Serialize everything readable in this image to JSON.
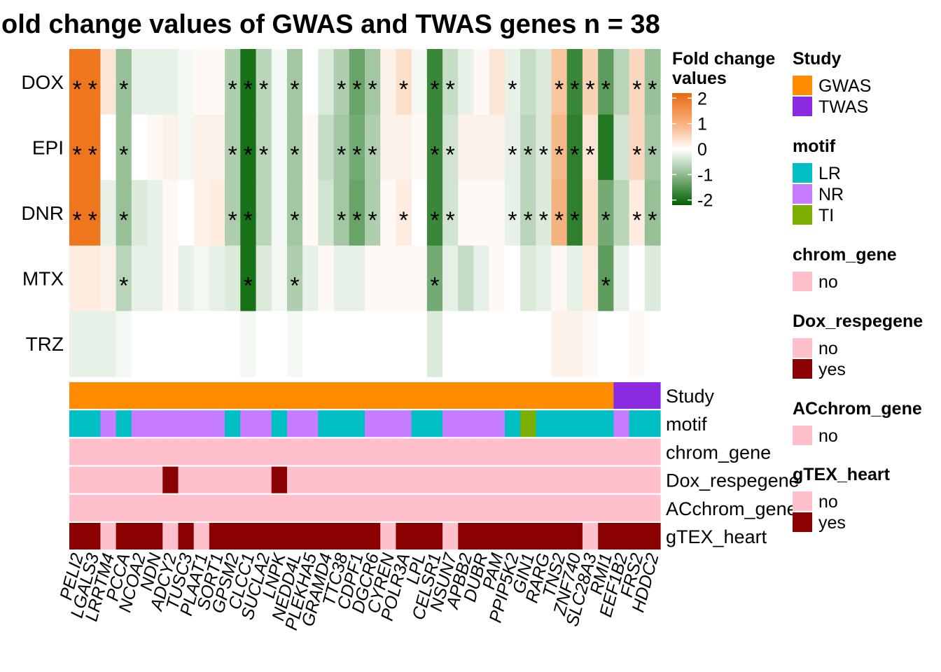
{
  "chart_data": {
    "type": "heatmap",
    "title": "old change values of GWAS and TWAS genes n = 38",
    "rows": [
      "DOX",
      "EPI",
      "DNR",
      "MTX",
      "TRZ"
    ],
    "columns": [
      "PELI2",
      "LGALS3",
      "LRRTM4",
      "PCCA",
      "NCOA2",
      "NDN",
      "ADCY2",
      "TUSC3",
      "PLAAT1",
      "SORT1",
      "GPSM2",
      "CLCC1",
      "SUCLA2",
      "LNPK",
      "NEDD4L",
      "PLEKHA5",
      "GRAMD4",
      "TTC38",
      "CDPF1",
      "DGCR6",
      "CYREN",
      "POLR3A",
      "LPL",
      "CELSR1",
      "NSUN7",
      "APBB2",
      "DUBR",
      "PAM",
      "PPIP5K2",
      "GIN1",
      "RARG",
      "TNS2",
      "ZNF740",
      "SLC28A3",
      "RMI1",
      "EEF1B2",
      "FRS2",
      "HDDC2"
    ],
    "values": [
      [
        2.1,
        2.1,
        0.4,
        -0.9,
        -0.2,
        -0.2,
        -0.2,
        -0.1,
        0.1,
        0.1,
        -0.7,
        -2.0,
        -0.6,
        -0.1,
        -0.8,
        0.0,
        -0.3,
        -0.7,
        -1.3,
        -0.8,
        0.2,
        0.5,
        -0.1,
        -1.7,
        -0.5,
        -0.2,
        0.1,
        0.4,
        -0.2,
        -0.5,
        -0.3,
        0.9,
        -1.7,
        0.7,
        -1.4,
        -0.6,
        0.6,
        -0.9
      ],
      [
        2.1,
        2.1,
        0.0,
        -0.9,
        0.0,
        0.1,
        0.2,
        -0.1,
        0.2,
        0.2,
        -0.7,
        -2.0,
        -0.6,
        -0.1,
        -0.8,
        0.1,
        -0.5,
        -0.8,
        -1.2,
        -0.7,
        0.2,
        0.2,
        0.1,
        -1.7,
        -0.4,
        0.2,
        0.2,
        0.2,
        -0.2,
        -0.6,
        -0.3,
        1.1,
        -1.8,
        0.4,
        -1.9,
        -0.4,
        0.6,
        -0.8
      ],
      [
        2.1,
        2.1,
        -0.2,
        -0.9,
        -0.3,
        -0.2,
        0.1,
        0.0,
        0.2,
        0.3,
        -0.7,
        -2.0,
        -0.6,
        -0.1,
        -0.8,
        0.1,
        -0.4,
        -0.8,
        -1.3,
        -0.7,
        0.1,
        0.3,
        0.0,
        -1.7,
        -0.4,
        0.1,
        0.1,
        0.1,
        -0.2,
        -0.6,
        -0.3,
        1.2,
        -1.8,
        0.5,
        -1.2,
        -0.6,
        0.3,
        -0.9
      ],
      [
        0.3,
        0.3,
        0.2,
        -0.6,
        -0.2,
        -0.2,
        0.1,
        -0.2,
        -0.1,
        -0.2,
        -0.3,
        -2.0,
        -0.3,
        -0.1,
        -0.7,
        -0.2,
        0.1,
        -0.2,
        -0.2,
        0.1,
        0.1,
        0.1,
        0.1,
        -1.2,
        -0.2,
        -0.5,
        -0.2,
        0.1,
        0.0,
        -0.3,
        -0.2,
        0.1,
        -0.2,
        0.3,
        -1.4,
        -0.2,
        0.0,
        -0.3
      ],
      [
        -0.2,
        -0.2,
        -0.2,
        -0.1,
        0.0,
        0.0,
        0.0,
        0.0,
        0.0,
        0.0,
        0.0,
        -0.1,
        0.0,
        0.0,
        -0.1,
        0.0,
        0.0,
        0.0,
        0.0,
        0.0,
        0.0,
        0.0,
        0.0,
        -0.3,
        0.0,
        0.0,
        0.0,
        0.0,
        0.0,
        0.0,
        0.0,
        0.2,
        0.2,
        0.1,
        0.0,
        0.0,
        0.1,
        0.0
      ]
    ],
    "stars": [
      [
        1,
        1,
        0,
        1,
        0,
        0,
        0,
        0,
        0,
        0,
        1,
        1,
        1,
        0,
        1,
        0,
        0,
        1,
        1,
        1,
        0,
        1,
        0,
        1,
        1,
        0,
        0,
        0,
        1,
        0,
        0,
        1,
        1,
        1,
        1,
        0,
        1,
        1
      ],
      [
        1,
        1,
        0,
        1,
        0,
        0,
        0,
        0,
        0,
        0,
        1,
        1,
        1,
        0,
        1,
        0,
        0,
        1,
        1,
        1,
        0,
        0,
        0,
        1,
        1,
        0,
        0,
        0,
        1,
        1,
        1,
        1,
        1,
        1,
        0,
        0,
        1,
        1
      ],
      [
        1,
        1,
        0,
        1,
        0,
        0,
        0,
        0,
        0,
        0,
        1,
        1,
        0,
        0,
        1,
        0,
        0,
        1,
        1,
        1,
        0,
        1,
        0,
        1,
        1,
        0,
        0,
        0,
        1,
        1,
        1,
        1,
        1,
        0,
        1,
        0,
        1,
        1
      ],
      [
        0,
        0,
        0,
        1,
        0,
        0,
        0,
        0,
        0,
        0,
        0,
        1,
        0,
        0,
        1,
        0,
        0,
        0,
        0,
        0,
        0,
        0,
        0,
        1,
        0,
        0,
        0,
        0,
        0,
        0,
        0,
        0,
        0,
        0,
        1,
        0,
        0,
        0
      ],
      [
        0,
        0,
        0,
        0,
        0,
        0,
        0,
        0,
        0,
        0,
        0,
        0,
        0,
        0,
        0,
        0,
        0,
        0,
        0,
        0,
        0,
        0,
        0,
        0,
        0,
        0,
        0,
        0,
        0,
        0,
        0,
        0,
        0,
        0,
        0,
        0,
        0,
        0
      ]
    ],
    "star_symbol": "*",
    "colorbar": {
      "title_line1": "Fold change",
      "title_line2": "values",
      "ticks": [
        2,
        1,
        0,
        -1,
        -2
      ],
      "range": [
        -2.2,
        2.2
      ],
      "low_color": "#006400",
      "mid_color": "#ffffff",
      "high_color": "#ed7013"
    },
    "annotations": [
      {
        "name": "Study",
        "values": [
          "GWAS",
          "GWAS",
          "GWAS",
          "GWAS",
          "GWAS",
          "GWAS",
          "GWAS",
          "GWAS",
          "GWAS",
          "GWAS",
          "GWAS",
          "GWAS",
          "GWAS",
          "GWAS",
          "GWAS",
          "GWAS",
          "GWAS",
          "GWAS",
          "GWAS",
          "GWAS",
          "GWAS",
          "GWAS",
          "GWAS",
          "GWAS",
          "GWAS",
          "GWAS",
          "GWAS",
          "GWAS",
          "GWAS",
          "GWAS",
          "GWAS",
          "GWAS",
          "GWAS",
          "GWAS",
          "GWAS",
          "TWAS",
          "TWAS",
          "TWAS"
        ]
      },
      {
        "name": "motif",
        "values": [
          "LR",
          "LR",
          "NR",
          "LR",
          "NR",
          "NR",
          "NR",
          "NR",
          "NR",
          "NR",
          "LR",
          "NR",
          "NR",
          "LR",
          "NR",
          "NR",
          "LR",
          "LR",
          "LR",
          "NR",
          "NR",
          "NR",
          "LR",
          "LR",
          "NR",
          "NR",
          "NR",
          "NR",
          "LR",
          "TI",
          "LR",
          "LR",
          "LR",
          "LR",
          "LR",
          "NR",
          "LR",
          "LR"
        ]
      },
      {
        "name": "chrom_gene",
        "values": [
          "no",
          "no",
          "no",
          "no",
          "no",
          "no",
          "no",
          "no",
          "no",
          "no",
          "no",
          "no",
          "no",
          "no",
          "no",
          "no",
          "no",
          "no",
          "no",
          "no",
          "no",
          "no",
          "no",
          "no",
          "no",
          "no",
          "no",
          "no",
          "no",
          "no",
          "no",
          "no",
          "no",
          "no",
          "no",
          "no",
          "no",
          "no"
        ]
      },
      {
        "name": "Dox_respegene",
        "values": [
          "no",
          "no",
          "no",
          "no",
          "no",
          "no",
          "yes",
          "no",
          "no",
          "no",
          "no",
          "no",
          "no",
          "yes",
          "no",
          "no",
          "no",
          "no",
          "no",
          "no",
          "no",
          "no",
          "no",
          "no",
          "no",
          "no",
          "no",
          "no",
          "no",
          "no",
          "no",
          "no",
          "no",
          "no",
          "no",
          "no",
          "no",
          "no"
        ]
      },
      {
        "name": "ACchrom_gene",
        "values": [
          "no",
          "no",
          "no",
          "no",
          "no",
          "no",
          "no",
          "no",
          "no",
          "no",
          "no",
          "no",
          "no",
          "no",
          "no",
          "no",
          "no",
          "no",
          "no",
          "no",
          "no",
          "no",
          "no",
          "no",
          "no",
          "no",
          "no",
          "no",
          "no",
          "no",
          "no",
          "no",
          "no",
          "no",
          "no",
          "no",
          "no",
          "no"
        ]
      },
      {
        "name": "gTEX_heart",
        "values": [
          "yes",
          "yes",
          "no",
          "yes",
          "yes",
          "yes",
          "no",
          "yes",
          "no",
          "yes",
          "yes",
          "yes",
          "yes",
          "yes",
          "yes",
          "yes",
          "yes",
          "yes",
          "yes",
          "yes",
          "no",
          "yes",
          "yes",
          "yes",
          "no",
          "yes",
          "yes",
          "yes",
          "yes",
          "yes",
          "yes",
          "yes",
          "yes",
          "no",
          "yes",
          "yes",
          "yes",
          "yes"
        ]
      }
    ],
    "legends": [
      {
        "title": "Study",
        "items": [
          {
            "label": "GWAS",
            "color": "#ff8c00"
          },
          {
            "label": "TWAS",
            "color": "#8a2be2"
          }
        ]
      },
      {
        "title": "motif",
        "items": [
          {
            "label": "LR",
            "color": "#00bfc4"
          },
          {
            "label": "NR",
            "color": "#c77cff"
          },
          {
            "label": "TI",
            "color": "#7cae00"
          }
        ]
      },
      {
        "title": "chrom_gene",
        "items": [
          {
            "label": "no",
            "color": "#ffc0cb"
          }
        ]
      },
      {
        "title": "Dox_respegene",
        "items": [
          {
            "label": "no",
            "color": "#ffc0cb"
          },
          {
            "label": "yes",
            "color": "#8b0000"
          }
        ]
      },
      {
        "title": "ACchrom_gene",
        "items": [
          {
            "label": "no",
            "color": "#ffc0cb"
          }
        ]
      },
      {
        "title": "gTEX_heart",
        "items": [
          {
            "label": "no",
            "color": "#ffc0cb"
          },
          {
            "label": "yes",
            "color": "#8b0000"
          }
        ]
      }
    ]
  }
}
